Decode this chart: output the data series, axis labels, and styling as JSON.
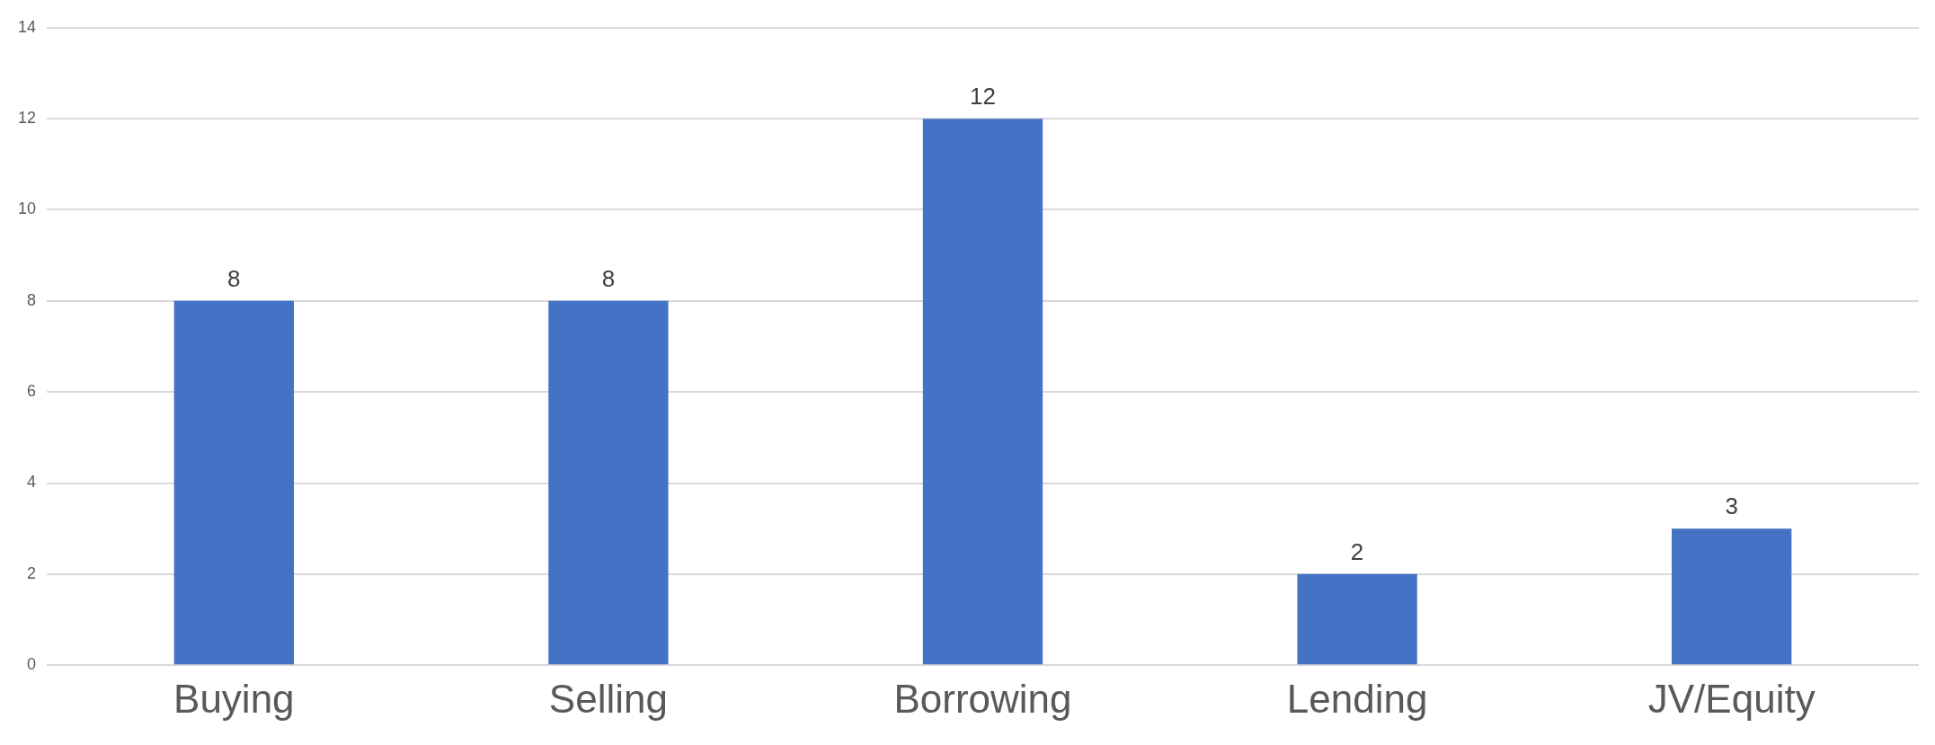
{
  "chart_data": {
    "type": "bar",
    "categories": [
      "Buying",
      "Selling",
      "Borrowing",
      "Lending",
      "JV/Equity"
    ],
    "values": [
      8,
      8,
      12,
      2,
      3
    ],
    "color": "#4472c4",
    "ylim": [
      0,
      14
    ],
    "yticks": [
      0,
      2,
      4,
      6,
      8,
      10,
      12,
      14
    ],
    "grid": "y",
    "data_labels": true
  }
}
